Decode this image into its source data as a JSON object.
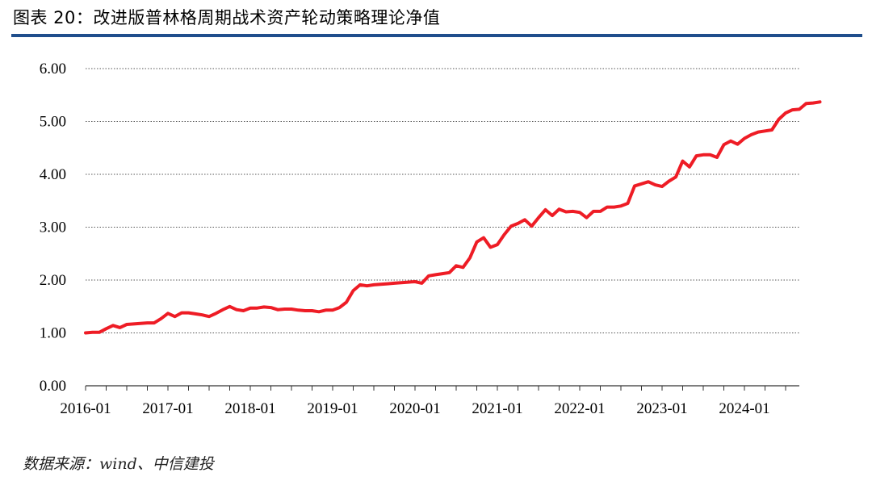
{
  "header": {
    "title": "图表 20：改进版普林格周期战术资产轮动策略理论净值"
  },
  "footer": {
    "source": "数据来源：wind、中信建投"
  },
  "colors": {
    "line": "#ee1c25",
    "title_rule": "#1f4e8c"
  },
  "chart_data": {
    "type": "line",
    "title": "",
    "xlabel": "",
    "ylabel": "",
    "ylim": [
      0,
      6
    ],
    "yticks": [
      "0.00",
      "1.00",
      "2.00",
      "3.00",
      "4.00",
      "5.00",
      "6.00"
    ],
    "xticks": [
      "2016-01",
      "2017-01",
      "2018-01",
      "2019-01",
      "2020-01",
      "2021-01",
      "2022-01",
      "2023-01",
      "2024-01"
    ],
    "x_start": "2016-01",
    "x_end": "2024-09",
    "grid": "horizontal-dotted",
    "series": [
      {
        "name": "",
        "values": [
          1.0,
          1.01,
          1.01,
          1.08,
          1.14,
          1.1,
          1.16,
          1.17,
          1.18,
          1.19,
          1.19,
          1.27,
          1.37,
          1.31,
          1.38,
          1.38,
          1.36,
          1.34,
          1.31,
          1.37,
          1.44,
          1.5,
          1.44,
          1.42,
          1.47,
          1.47,
          1.49,
          1.48,
          1.44,
          1.45,
          1.45,
          1.43,
          1.42,
          1.42,
          1.4,
          1.43,
          1.43,
          1.48,
          1.58,
          1.8,
          1.91,
          1.89,
          1.91,
          1.92,
          1.93,
          1.94,
          1.95,
          1.96,
          1.97,
          1.94,
          2.08,
          2.1,
          2.12,
          2.14,
          2.27,
          2.24,
          2.42,
          2.72,
          2.8,
          2.62,
          2.67,
          2.86,
          3.02,
          3.07,
          3.14,
          3.02,
          3.18,
          3.33,
          3.22,
          3.34,
          3.29,
          3.3,
          3.28,
          3.18,
          3.3,
          3.3,
          3.38,
          3.38,
          3.4,
          3.45,
          3.78,
          3.82,
          3.86,
          3.8,
          3.77,
          3.87,
          3.95,
          4.25,
          4.14,
          4.35,
          4.37,
          4.37,
          4.32,
          4.56,
          4.63,
          4.57,
          4.68,
          4.75,
          4.8,
          4.82,
          4.84,
          5.04,
          5.16,
          5.22,
          5.23,
          5.34,
          5.35,
          5.37
        ]
      }
    ]
  }
}
